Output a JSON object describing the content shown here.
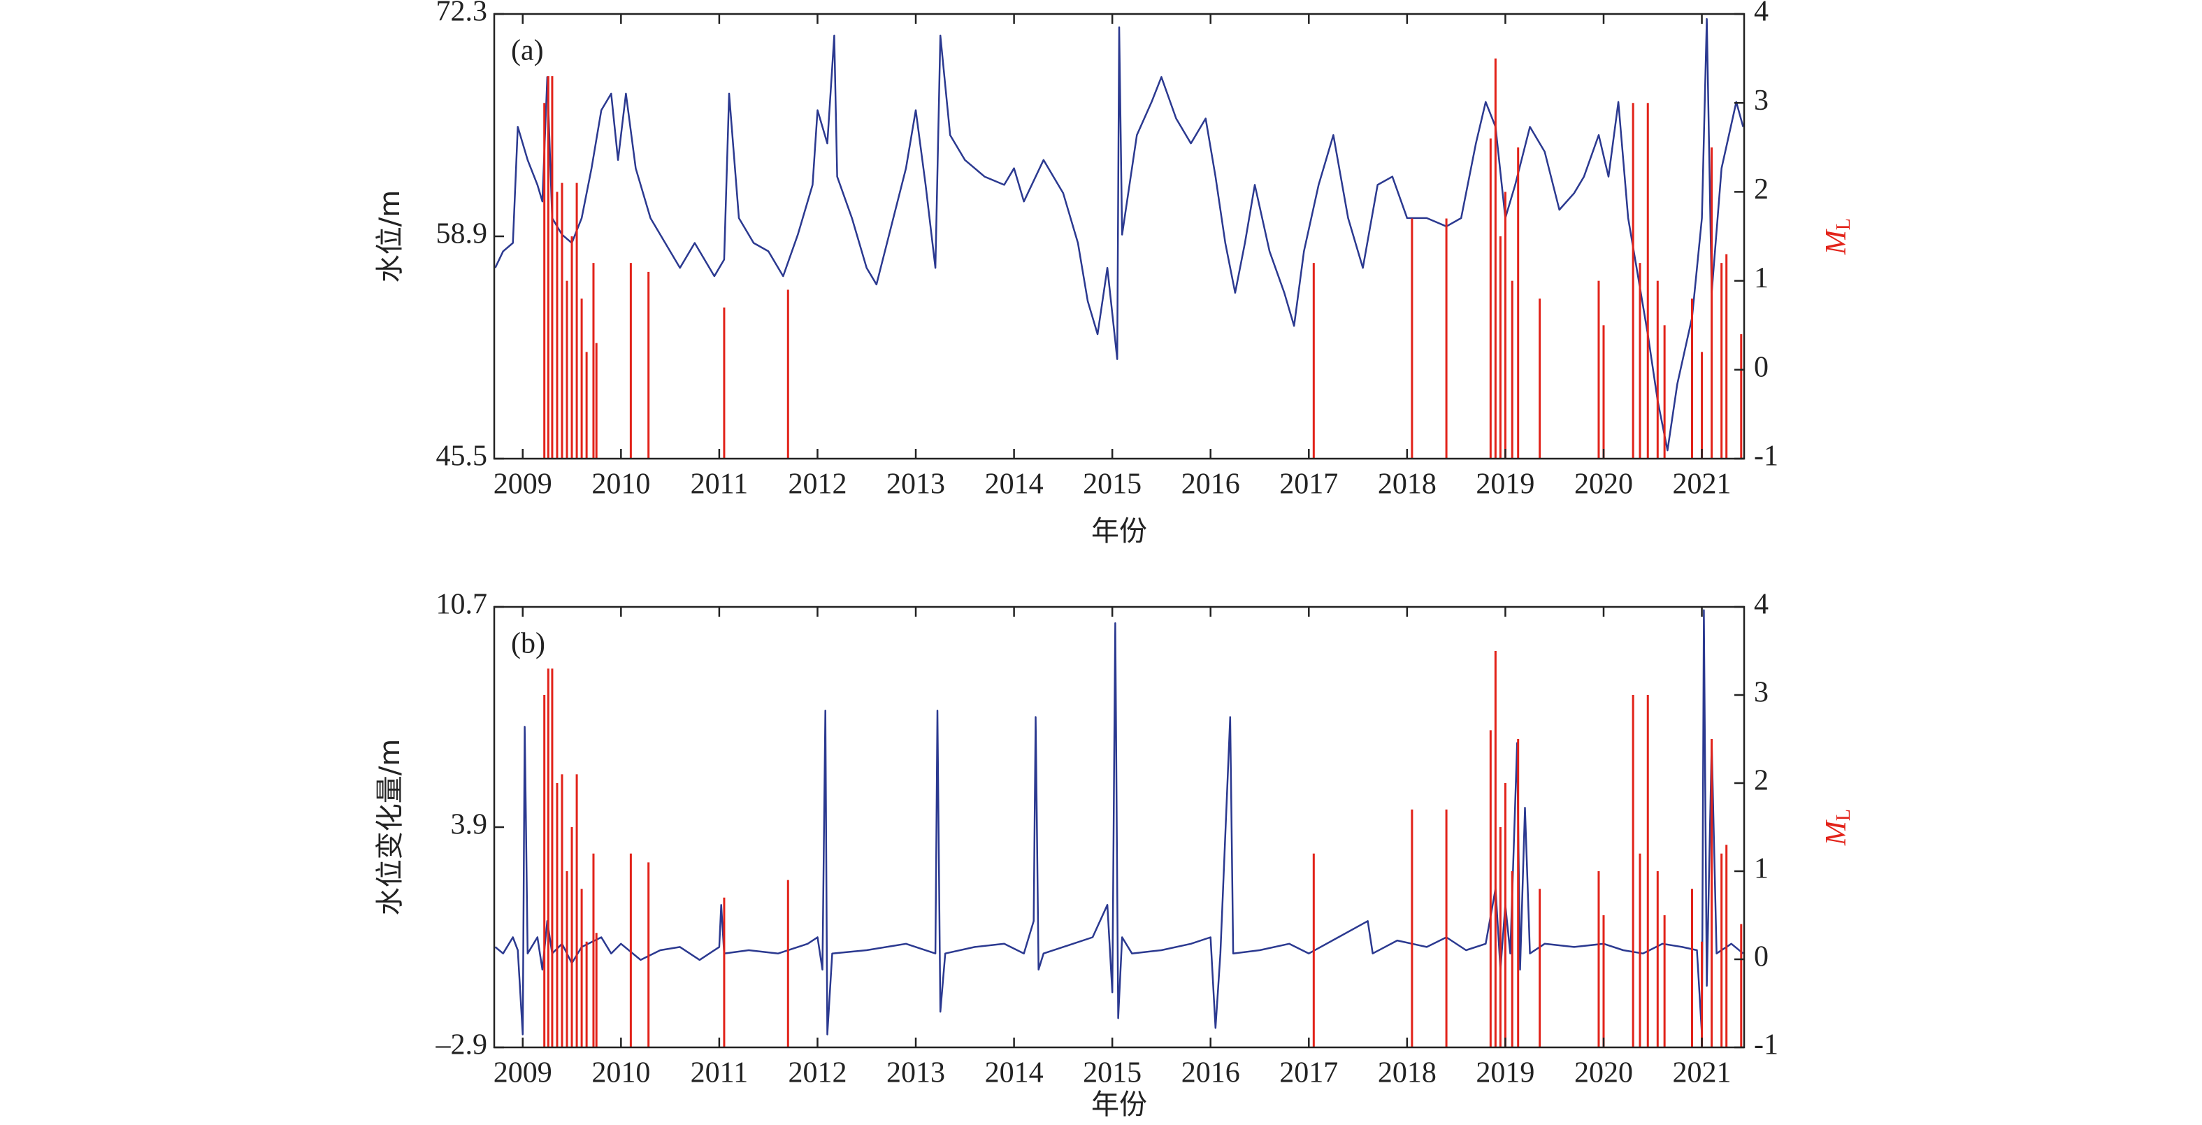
{
  "chart_data": [
    {
      "type": "line",
      "annotation": "(a)",
      "ylabel": "水位/m",
      "xlabel": "年份",
      "y2label": "M",
      "y2label_sub": "L",
      "xlim": [
        2008.71,
        2021.43
      ],
      "xticks": [
        2009,
        2010,
        2011,
        2012,
        2013,
        2014,
        2015,
        2016,
        2017,
        2018,
        2019,
        2020,
        2021
      ],
      "ylim": [
        45.5,
        72.3
      ],
      "yticks": [
        45.5,
        58.9,
        72.3
      ],
      "y2lim": [
        -1,
        4
      ],
      "y2ticks": [
        -1,
        0,
        1,
        2,
        3,
        4
      ],
      "series": [
        {
          "type": "line",
          "color": "#2b3990",
          "x": [
            2008.72,
            2008.8,
            2008.9,
            2008.95,
            2009.05,
            2009.15,
            2009.2,
            2009.25,
            2009.3,
            2009.4,
            2009.5,
            2009.6,
            2009.7,
            2009.8,
            2009.9,
            2009.97,
            2010.05,
            2010.15,
            2010.3,
            2010.45,
            2010.6,
            2010.75,
            2010.95,
            2011.05,
            2011.1,
            2011.2,
            2011.35,
            2011.5,
            2011.65,
            2011.8,
            2011.95,
            2012.0,
            2012.1,
            2012.17,
            2012.2,
            2012.35,
            2012.5,
            2012.6,
            2012.75,
            2012.9,
            2013.0,
            2013.1,
            2013.2,
            2013.25,
            2013.35,
            2013.5,
            2013.7,
            2013.9,
            2014.0,
            2014.1,
            2014.3,
            2014.5,
            2014.65,
            2014.75,
            2014.85,
            2014.95,
            2015.05,
            2015.07,
            2015.1,
            2015.25,
            2015.4,
            2015.5,
            2015.65,
            2015.8,
            2015.95,
            2016.05,
            2016.15,
            2016.25,
            2016.35,
            2016.45,
            2016.6,
            2016.75,
            2016.85,
            2016.95,
            2017.1,
            2017.25,
            2017.4,
            2017.55,
            2017.7,
            2017.85,
            2018.0,
            2018.2,
            2018.4,
            2018.55,
            2018.7,
            2018.8,
            2018.9,
            2019.0,
            2019.1,
            2019.25,
            2019.4,
            2019.55,
            2019.7,
            2019.8,
            2019.95,
            2020.05,
            2020.15,
            2020.25,
            2020.35,
            2020.45,
            2020.55,
            2020.65,
            2020.75,
            2020.9,
            2021.0,
            2021.05,
            2021.1,
            2021.2,
            2021.35,
            2021.42
          ],
          "values": [
            57.0,
            58.0,
            58.5,
            65.5,
            63.5,
            62.0,
            61.0,
            68.5,
            60.0,
            59.0,
            58.5,
            60.0,
            63.0,
            66.5,
            67.5,
            63.5,
            67.5,
            63.0,
            60.0,
            58.5,
            57.0,
            58.5,
            56.5,
            57.5,
            67.5,
            60.0,
            58.5,
            58.0,
            56.5,
            59.0,
            62.0,
            66.5,
            64.5,
            71.0,
            62.5,
            60.0,
            57.0,
            56.0,
            59.5,
            63.0,
            66.5,
            62.0,
            57.0,
            71.0,
            65.0,
            63.5,
            62.5,
            62.0,
            63.0,
            61.0,
            63.5,
            61.5,
            58.5,
            55.0,
            53.0,
            57.0,
            51.5,
            71.5,
            59.0,
            65.0,
            67.0,
            68.5,
            66.0,
            64.5,
            66.0,
            62.5,
            58.5,
            55.5,
            58.5,
            62.0,
            58.0,
            55.5,
            53.5,
            58.0,
            62.0,
            65.0,
            60.0,
            57.0,
            62.0,
            62.5,
            60.0,
            60.0,
            59.5,
            60.0,
            64.5,
            67.0,
            65.5,
            60.0,
            62.0,
            65.5,
            64.0,
            60.5,
            61.5,
            62.5,
            65.0,
            62.5,
            67.0,
            60.0,
            56.5,
            53.0,
            49.0,
            46.0,
            50.0,
            54.0,
            60.0,
            72.0,
            55.5,
            63.0,
            67.0,
            65.5
          ]
        },
        {
          "type": "stem",
          "axis": "y2",
          "color": "#e2231a",
          "x": [
            2009.22,
            2009.26,
            2009.3,
            2009.35,
            2009.4,
            2009.45,
            2009.5,
            2009.55,
            2009.6,
            2009.65,
            2009.72,
            2009.75,
            2010.1,
            2010.28,
            2011.05,
            2011.7,
            2017.05,
            2018.05,
            2018.4,
            2018.85,
            2018.9,
            2018.95,
            2019.0,
            2019.07,
            2019.13,
            2019.35,
            2019.95,
            2020.0,
            2020.3,
            2020.37,
            2020.45,
            2020.55,
            2020.62,
            2020.9,
            2021.0,
            2021.1,
            2021.2,
            2021.25,
            2021.4
          ],
          "values": [
            3.0,
            3.3,
            3.3,
            2.0,
            2.1,
            1.0,
            1.5,
            2.1,
            0.8,
            0.2,
            1.2,
            0.3,
            1.2,
            1.1,
            0.7,
            0.9,
            1.2,
            1.7,
            1.7,
            2.6,
            3.5,
            1.5,
            2.0,
            1.0,
            2.5,
            0.8,
            1.0,
            0.5,
            3.0,
            1.2,
            3.0,
            1.0,
            0.5,
            0.8,
            0.2,
            2.5,
            1.2,
            1.3,
            0.4
          ]
        }
      ]
    },
    {
      "type": "line",
      "annotation": "(b)",
      "ylabel": "水位变化量/m",
      "xlabel": "年份",
      "y2label": "M",
      "y2label_sub": "L",
      "xlim": [
        2008.71,
        2021.43
      ],
      "xticks": [
        2009,
        2010,
        2011,
        2012,
        2013,
        2014,
        2015,
        2016,
        2017,
        2018,
        2019,
        2020,
        2021
      ],
      "ylim": [
        -2.9,
        10.7
      ],
      "yticks": [
        {
          "value": -2.9,
          "label": "–2.9"
        },
        3.9,
        10.7
      ],
      "y2lim": [
        -1,
        4
      ],
      "y2ticks": [
        -1,
        0,
        1,
        2,
        3,
        4
      ],
      "series": [
        {
          "type": "line",
          "color": "#2b3990",
          "x": [
            2008.72,
            2008.8,
            2008.9,
            2008.95,
            2009.0,
            2009.02,
            2009.05,
            2009.15,
            2009.2,
            2009.25,
            2009.3,
            2009.4,
            2009.5,
            2009.6,
            2009.8,
            2009.9,
            2010.0,
            2010.2,
            2010.4,
            2010.6,
            2010.8,
            2011.0,
            2011.02,
            2011.05,
            2011.3,
            2011.6,
            2011.9,
            2012.0,
            2012.05,
            2012.08,
            2012.1,
            2012.15,
            2012.5,
            2012.9,
            2013.2,
            2013.22,
            2013.25,
            2013.3,
            2013.6,
            2013.9,
            2014.1,
            2014.2,
            2014.22,
            2014.25,
            2014.3,
            2014.6,
            2014.8,
            2014.95,
            2015.0,
            2015.03,
            2015.06,
            2015.1,
            2015.2,
            2015.5,
            2015.8,
            2016.0,
            2016.05,
            2016.1,
            2016.2,
            2016.23,
            2016.5,
            2016.8,
            2017.0,
            2017.3,
            2017.6,
            2017.65,
            2017.9,
            2018.2,
            2018.4,
            2018.6,
            2018.8,
            2018.9,
            2018.95,
            2019.0,
            2019.05,
            2019.12,
            2019.15,
            2019.2,
            2019.25,
            2019.4,
            2019.7,
            2020.0,
            2020.2,
            2020.4,
            2020.6,
            2020.8,
            2020.95,
            2021.0,
            2021.02,
            2021.05,
            2021.1,
            2021.15,
            2021.3,
            2021.42
          ],
          "values": [
            0.2,
            0.0,
            0.5,
            0.1,
            -2.5,
            7.0,
            0.0,
            0.5,
            -0.5,
            1.0,
            0.0,
            0.3,
            -0.3,
            0.2,
            0.5,
            0.0,
            0.3,
            -0.2,
            0.1,
            0.2,
            -0.2,
            0.2,
            1.5,
            0.0,
            0.1,
            0.0,
            0.3,
            0.5,
            -0.5,
            7.5,
            -2.5,
            0.0,
            0.1,
            0.3,
            0.0,
            7.5,
            -1.8,
            0.0,
            0.2,
            0.3,
            0.0,
            1.0,
            7.3,
            -0.5,
            0.0,
            0.3,
            0.5,
            1.5,
            -1.2,
            10.2,
            -2.0,
            0.5,
            0.0,
            0.1,
            0.3,
            0.5,
            -2.3,
            0.0,
            7.3,
            0.0,
            0.1,
            0.3,
            0.0,
            0.5,
            1.0,
            0.0,
            0.4,
            0.2,
            0.5,
            0.1,
            0.3,
            2.0,
            -0.5,
            1.5,
            0.0,
            6.5,
            -0.5,
            4.5,
            0.0,
            0.3,
            0.2,
            0.3,
            0.1,
            0.0,
            0.3,
            0.2,
            0.1,
            -2.5,
            10.6,
            -1.0,
            6.5,
            0.0,
            0.3,
            0.0
          ]
        },
        {
          "type": "stem",
          "axis": "y2",
          "color": "#e2231a",
          "x": [
            2009.22,
            2009.26,
            2009.3,
            2009.35,
            2009.4,
            2009.45,
            2009.5,
            2009.55,
            2009.6,
            2009.65,
            2009.72,
            2009.75,
            2010.1,
            2010.28,
            2011.05,
            2011.7,
            2017.05,
            2018.05,
            2018.4,
            2018.85,
            2018.9,
            2018.95,
            2019.0,
            2019.07,
            2019.13,
            2019.35,
            2019.95,
            2020.0,
            2020.3,
            2020.37,
            2020.45,
            2020.55,
            2020.62,
            2020.9,
            2021.0,
            2021.1,
            2021.2,
            2021.25,
            2021.4
          ],
          "values": [
            3.0,
            3.3,
            3.3,
            2.0,
            2.1,
            1.0,
            1.5,
            2.1,
            0.8,
            0.2,
            1.2,
            0.3,
            1.2,
            1.1,
            0.7,
            0.9,
            1.2,
            1.7,
            1.7,
            2.6,
            3.5,
            1.5,
            2.0,
            1.0,
            2.5,
            0.8,
            1.0,
            0.5,
            3.0,
            1.2,
            3.0,
            1.0,
            0.5,
            0.8,
            0.2,
            2.5,
            1.2,
            1.3,
            0.4
          ]
        }
      ]
    }
  ]
}
